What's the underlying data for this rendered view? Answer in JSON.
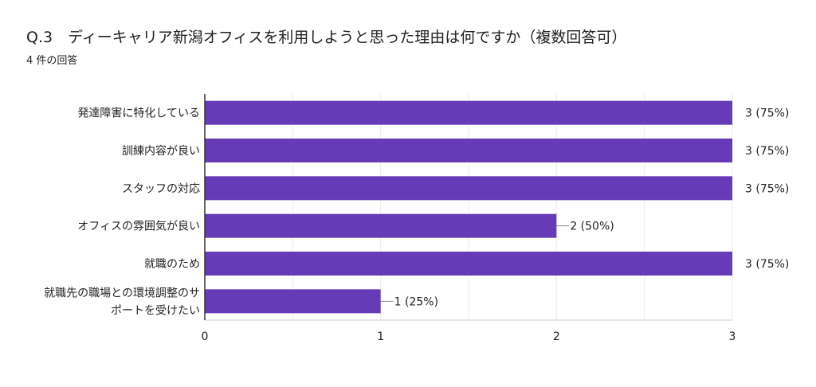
{
  "header": {
    "question": "Q.3　ディーキャリア新潟オフィスを利用しようと思った理由は何ですか（複数回答可）",
    "response_count": "4 件の回答"
  },
  "colors": {
    "bar": "#673ab7",
    "axis": "#333333",
    "grid": "#ebebeb",
    "text": "#222222"
  },
  "chart_data": {
    "type": "bar",
    "orientation": "horizontal",
    "title": "Q.3　ディーキャリア新潟オフィスを利用しようと思った理由は何ですか（複数回答可）",
    "subtitle": "4 件の回答",
    "categories": [
      [
        "発達障害に特化している"
      ],
      [
        "訓練内容が良い"
      ],
      [
        "スタッフの対応"
      ],
      [
        "オフィスの雰囲気が良い"
      ],
      [
        "就職のため"
      ],
      [
        "就職先の職場との環境調整のサ",
        "ポートを受けたい"
      ]
    ],
    "values": [
      3,
      3,
      3,
      2,
      3,
      1
    ],
    "data_labels": [
      "3 (75%)",
      "3 (75%)",
      "3 (75%)",
      "2 (50%)",
      "3 (75%)",
      "1 (25%)"
    ],
    "xlim": [
      0,
      3
    ],
    "xticks": [
      "0",
      "1",
      "2",
      "3"
    ],
    "grid": true,
    "legend": "none"
  }
}
